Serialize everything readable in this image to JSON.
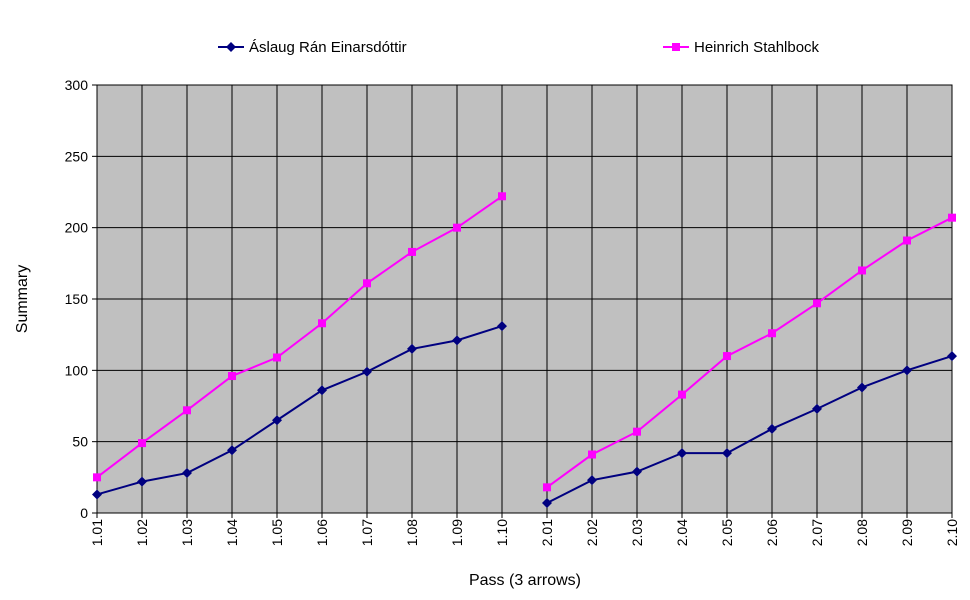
{
  "chart_data": {
    "type": "line",
    "title": "",
    "xlabel": "Pass (3 arrows)",
    "ylabel": "Summary",
    "ylim": [
      0,
      300
    ],
    "yticks": [
      "0",
      "50",
      "100",
      "150",
      "200",
      "250",
      "300"
    ],
    "grid": true,
    "plot_background": "#C0C0C0",
    "legend_position": "top",
    "categories": [
      "1.01",
      "1.02",
      "1.03",
      "1.04",
      "1.05",
      "1.06",
      "1.07",
      "1.08",
      "1.09",
      "1.10",
      "2.01",
      "2.02",
      "2.03",
      "2.04",
      "2.05",
      "2.06",
      "2.07",
      "2.08",
      "2.09",
      "2.10"
    ],
    "series": [
      {
        "name": "Áslaug Rán Einarsdóttir",
        "color": "#000080",
        "marker": "diamond",
        "values": [
          13,
          22,
          28,
          44,
          65,
          86,
          99,
          115,
          121,
          131,
          7,
          23,
          29,
          42,
          42,
          59,
          73,
          88,
          100,
          110
        ]
      },
      {
        "name": "Heinrich Stahlbock",
        "color": "#FF00FF",
        "marker": "square",
        "values": [
          25,
          49,
          72,
          96,
          109,
          133,
          161,
          183,
          200,
          222,
          18,
          41,
          57,
          83,
          110,
          126,
          147,
          170,
          191,
          207
        ]
      }
    ]
  }
}
